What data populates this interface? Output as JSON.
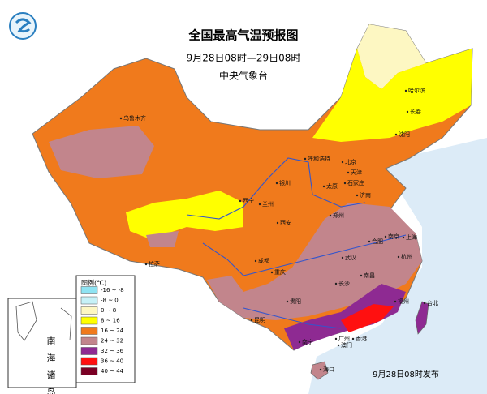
{
  "header": {
    "title": "全国最高气温预报图",
    "period": "9月28日08时—29日08时",
    "issuer": "中央气象台"
  },
  "legend": {
    "title": "图例(℃)",
    "items": [
      {
        "label": "-16 ~ -8",
        "color": "#8fe3f2"
      },
      {
        "label": "-8 ~ 0",
        "color": "#c6f1f7"
      },
      {
        "label": "0 ~ 8",
        "color": "#fdf7c2"
      },
      {
        "label": "8 ~ 16",
        "color": "#ffff00"
      },
      {
        "label": "16 ~ 24",
        "color": "#f07a1c"
      },
      {
        "label": "24 ~ 32",
        "color": "#c2858c"
      },
      {
        "label": "32 ~ 36",
        "color": "#8e2a92"
      },
      {
        "label": "36 ~ 40",
        "color": "#ff1010"
      },
      {
        "label": "40 ~ 44",
        "color": "#7a0024"
      }
    ]
  },
  "cities": [
    "乌鲁木齐",
    "哈尔滨",
    "长春",
    "沈阳",
    "呼和浩特",
    "北京",
    "天津",
    "银川",
    "石家庄",
    "太原",
    "济南",
    "西宁",
    "兰州",
    "郑州",
    "西安",
    "合肥",
    "南京",
    "上海",
    "成都",
    "武汉",
    "杭州",
    "拉萨",
    "重庆",
    "长沙",
    "南昌",
    "贵阳",
    "福州",
    "昆明",
    "南宁",
    "广州",
    "台北",
    "海口",
    "澳门",
    "香港"
  ],
  "inset_label": "南海诸岛",
  "footer": "9月28日08时发布"
}
